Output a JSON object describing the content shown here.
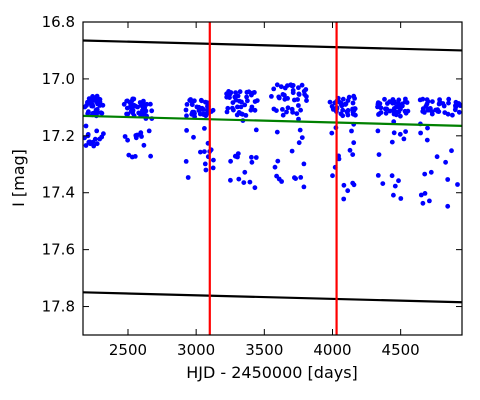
{
  "chart_data": {
    "type": "scatter",
    "xlabel": "HJD - 2450000 [days]",
    "ylabel": "I [mag]",
    "xlim": [
      2170,
      4950
    ],
    "ylim": [
      17.9,
      16.8
    ],
    "y_inverted": true,
    "grid": false,
    "x_ticks": [
      2500,
      3000,
      3500,
      4000,
      4500
    ],
    "y_ticks": [
      16.8,
      17.0,
      17.2,
      17.4,
      17.6,
      17.8
    ],
    "x_tick_labels": [
      "2500",
      "3000",
      "3500",
      "4000",
      "4500"
    ],
    "y_tick_labels": [
      "16.8",
      "17.0",
      "17.2",
      "17.4",
      "17.6",
      "17.8"
    ],
    "colors": {
      "points": "#0000ff",
      "fit_line": "#008000",
      "bounds": "#000000",
      "markers": "#ff0000"
    },
    "fit_line": {
      "x": [
        2170,
        4950
      ],
      "y": [
        17.13,
        17.165
      ]
    },
    "bound_lines": [
      {
        "x": [
          2170,
          4950
        ],
        "y": [
          16.865,
          16.9
        ]
      },
      {
        "x": [
          2170,
          4950
        ],
        "y": [
          17.75,
          17.785
        ]
      }
    ],
    "vertical_markers": [
      3100,
      4030
    ],
    "seasons": [
      {
        "x": [
          2180,
          2320
        ],
        "base": [
          17.06,
          17.13
        ],
        "tail": [
          17.13,
          17.24
        ]
      },
      {
        "x": [
          2470,
          2680
        ],
        "base": [
          17.07,
          17.13
        ],
        "tail": [
          17.13,
          17.28
        ]
      },
      {
        "x": [
          2920,
          3130
        ],
        "base": [
          17.07,
          17.13
        ],
        "tail": [
          17.13,
          17.35
        ]
      },
      {
        "x": [
          3220,
          3450
        ],
        "base": [
          17.04,
          17.13
        ],
        "tail": [
          17.13,
          17.39
        ]
      },
      {
        "x": [
          3550,
          3820
        ],
        "base": [
          17.02,
          17.13
        ],
        "tail": [
          17.13,
          17.38
        ]
      },
      {
        "x": [
          3980,
          4170
        ],
        "base": [
          17.06,
          17.13
        ],
        "tail": [
          17.13,
          17.43
        ]
      },
      {
        "x": [
          4330,
          4560
        ],
        "base": [
          17.07,
          17.13
        ],
        "tail": [
          17.13,
          17.45
        ]
      },
      {
        "x": [
          4640,
          4950
        ],
        "base": [
          17.07,
          17.13
        ],
        "tail": [
          17.13,
          17.47
        ]
      }
    ]
  }
}
